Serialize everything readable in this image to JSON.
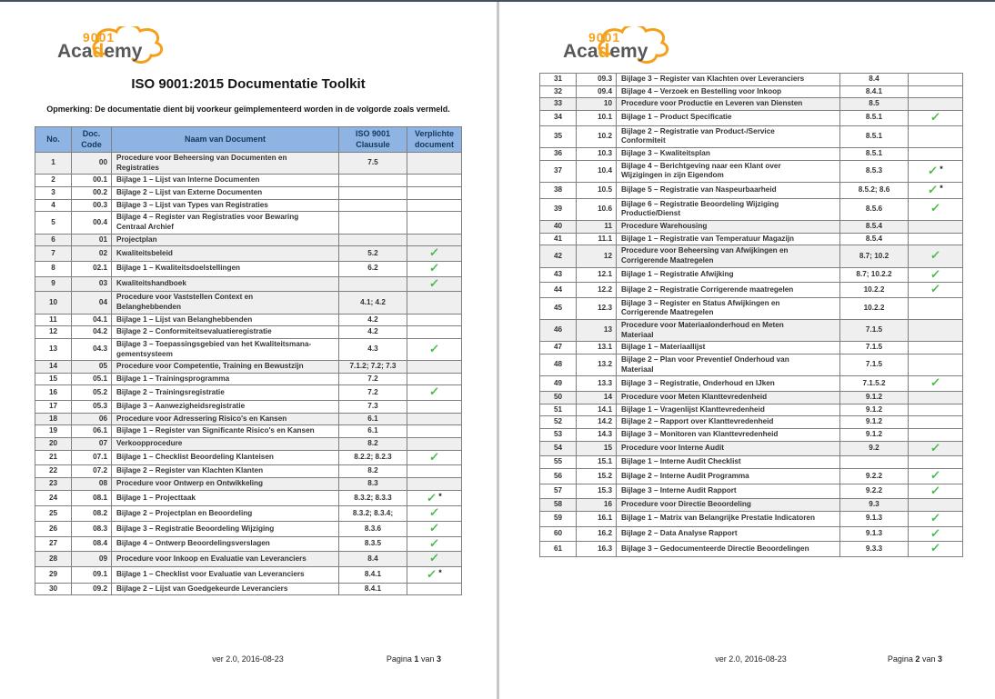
{
  "colors": {
    "brand_orange": "#F5A01B",
    "brand_gray": "#57585A",
    "header_bg": "#8DB4E2",
    "header_text": "#17365D",
    "check_green": "#4CBB49",
    "row_shaded": "#EFEFEF",
    "top_bar": "#44545C",
    "page_divider": "#C6C6C6"
  },
  "logo": {
    "number": "9001",
    "word_pre": "Aca",
    "word_accent": "d",
    "word_post": "emy"
  },
  "table_headers": [
    "No.",
    "Doc. Code",
    "Naam van Document",
    "ISO 9001 Clausule",
    "Verplichte document"
  ],
  "page1": {
    "title": "ISO 9001:2015 Documentatie Toolkit",
    "note": "Opmerking: De documentatie dient bij voorkeur geïmplementeerd worden in de volgorde zoals vermeld.",
    "footer": {
      "version": "ver 2.0, 2016-08-23",
      "pagina": "Pagina",
      "number": "1",
      "van": "van",
      "total": "3"
    },
    "rows": [
      {
        "no": "1",
        "code": "00",
        "name": "Procedure voor Beheersing van Documenten en\nRegistraties",
        "clause": "7.5",
        "check": false,
        "star": false,
        "shaded": true
      },
      {
        "no": "2",
        "code": "00.1",
        "name": "Bijlage 1 – Lijst van Interne Documenten",
        "clause": "",
        "check": false,
        "star": false,
        "shaded": false
      },
      {
        "no": "3",
        "code": "00.2",
        "name": "Bijlage 2 – Lijst van Externe Documenten",
        "clause": "",
        "check": false,
        "star": false,
        "shaded": false
      },
      {
        "no": "4",
        "code": "00.3",
        "name": "Bijlage 3 – Lijst van Types van Registraties",
        "clause": "",
        "check": false,
        "star": false,
        "shaded": false
      },
      {
        "no": "5",
        "code": "00.4",
        "name": "Bijlage 4 – Register van Registraties voor Bewaring\nCentraal Archief",
        "clause": "",
        "check": false,
        "star": false,
        "shaded": false
      },
      {
        "no": "6",
        "code": "01",
        "name": "Projectplan",
        "clause": "",
        "check": false,
        "star": false,
        "shaded": true
      },
      {
        "no": "7",
        "code": "02",
        "name": "Kwaliteitsbeleid",
        "clause": "5.2",
        "check": true,
        "star": false,
        "shaded": true
      },
      {
        "no": "8",
        "code": "02.1",
        "name": "Bijlage 1 – Kwaliteitsdoelstellingen",
        "clause": "6.2",
        "check": true,
        "star": false,
        "shaded": false
      },
      {
        "no": "9",
        "code": "03",
        "name": "Kwaliteitshandboek",
        "clause": "",
        "check": true,
        "star": false,
        "shaded": true
      },
      {
        "no": "10",
        "code": "04",
        "name": "Procedure voor Vaststellen Context en\nBelanghebbenden",
        "clause": "4.1; 4.2",
        "check": false,
        "star": false,
        "shaded": true
      },
      {
        "no": "11",
        "code": "04.1",
        "name": "Bijlage 1 – Lijst van Belanghebbenden",
        "clause": "4.2",
        "check": false,
        "star": false,
        "shaded": false
      },
      {
        "no": "12",
        "code": "04.2",
        "name": "Bijlage 2 – Conformiteitsevaluatieregistratie",
        "clause": "4.2",
        "check": false,
        "star": false,
        "shaded": false
      },
      {
        "no": "13",
        "code": "04.3",
        "name": "Bijlage 3 – Toepassingsgebied van het Kwaliteitsmana-\ngementsysteem",
        "clause": "4.3",
        "check": true,
        "star": false,
        "shaded": false
      },
      {
        "no": "14",
        "code": "05",
        "name": "Procedure voor Competentie, Training en Bewustzijn",
        "clause": "7.1.2; 7.2; 7.3",
        "check": false,
        "star": false,
        "shaded": true
      },
      {
        "no": "15",
        "code": "05.1",
        "name": "Bijlage 1 – Trainingsprogramma",
        "clause": "7.2",
        "check": false,
        "star": false,
        "shaded": false
      },
      {
        "no": "16",
        "code": "05.2",
        "name": "Bijlage 2 – Trainingsregistratie",
        "clause": "7.2",
        "check": true,
        "star": false,
        "shaded": false
      },
      {
        "no": "17",
        "code": "05.3",
        "name": "Bijlage 3 – Aanwezigheidsregistratie",
        "clause": "7.3",
        "check": false,
        "star": false,
        "shaded": false
      },
      {
        "no": "18",
        "code": "06",
        "name": "Procedure voor Adressering Risico's en Kansen",
        "clause": "6.1",
        "check": false,
        "star": false,
        "shaded": true
      },
      {
        "no": "19",
        "code": "06.1",
        "name": "Bijlage 1 – Register van Significante Risico's en Kansen",
        "clause": "6.1",
        "check": false,
        "star": false,
        "shaded": false
      },
      {
        "no": "20",
        "code": "07",
        "name": "Verkoopprocedure",
        "clause": "8.2",
        "check": false,
        "star": false,
        "shaded": true
      },
      {
        "no": "21",
        "code": "07.1",
        "name": "Bijlage 1 – Checklist Beoordeling Klanteisen",
        "clause": "8.2.2; 8.2.3",
        "check": true,
        "star": false,
        "shaded": false
      },
      {
        "no": "22",
        "code": "07.2",
        "name": "Bijlage 2 – Register van Klachten Klanten",
        "clause": "8.2",
        "check": false,
        "star": false,
        "shaded": false
      },
      {
        "no": "23",
        "code": "08",
        "name": "Procedure voor Ontwerp en Ontwikkeling",
        "clause": "8.3",
        "check": false,
        "star": false,
        "shaded": true
      },
      {
        "no": "24",
        "code": "08.1",
        "name": "Bijlage 1 – Projecttaak",
        "clause": "8.3.2; 8.3.3",
        "check": true,
        "star": true,
        "shaded": false
      },
      {
        "no": "25",
        "code": "08.2",
        "name": "Bijlage 2 – Projectplan en Beoordeling",
        "clause": "8.3.2; 8.3.4;",
        "check": true,
        "star": false,
        "shaded": false
      },
      {
        "no": "26",
        "code": "08.3",
        "name": "Bijlage 3 – Registratie Beoordeling Wijziging",
        "clause": "8.3.6",
        "check": true,
        "star": false,
        "shaded": false
      },
      {
        "no": "27",
        "code": "08.4",
        "name": "Bijlage 4 – Ontwerp Beoordelingsverslagen",
        "clause": "8.3.5",
        "check": true,
        "star": false,
        "shaded": false
      },
      {
        "no": "28",
        "code": "09",
        "name": "Procedure voor Inkoop en Evaluatie van Leveranciers",
        "clause": "8.4",
        "check": true,
        "star": false,
        "shaded": true
      },
      {
        "no": "29",
        "code": "09.1",
        "name": "Bijlage 1 – Checklist voor Evaluatie van Leveranciers",
        "clause": "8.4.1",
        "check": true,
        "star": true,
        "shaded": false
      },
      {
        "no": "30",
        "code": "09.2",
        "name": "Bijlage 2 – Lijst van Goedgekeurde Leveranciers",
        "clause": "8.4.1",
        "check": false,
        "star": false,
        "shaded": false
      }
    ]
  },
  "page2": {
    "footer": {
      "version": "ver 2.0, 2016-08-23",
      "pagina": "Pagina",
      "number": "2",
      "van": "van",
      "total": "3"
    },
    "rows": [
      {
        "no": "31",
        "code": "09.3",
        "name": "Bijlage 3 – Register van Klachten over Leveranciers",
        "clause": "8.4",
        "check": false,
        "star": false,
        "shaded": false
      },
      {
        "no": "32",
        "code": "09.4",
        "name": "Bijlage 4 – Verzoek en Bestelling voor Inkoop",
        "clause": "8.4.1",
        "check": false,
        "star": false,
        "shaded": false
      },
      {
        "no": "33",
        "code": "10",
        "name": "Procedure voor Productie en Leveren van Diensten",
        "clause": "8.5",
        "check": false,
        "star": false,
        "shaded": true
      },
      {
        "no": "34",
        "code": "10.1",
        "name": "Bijlage 1 – Product Specificatie",
        "clause": "8.5.1",
        "check": true,
        "star": false,
        "shaded": false
      },
      {
        "no": "35",
        "code": "10.2",
        "name": "Bijlage 2 – Registratie van Product-/Service\nConformiteit",
        "clause": "8.5.1",
        "check": false,
        "star": false,
        "shaded": false
      },
      {
        "no": "36",
        "code": "10.3",
        "name": "Bijlage 3 – Kwaliteitsplan",
        "clause": "8.5.1",
        "check": false,
        "star": false,
        "shaded": false
      },
      {
        "no": "37",
        "code": "10.4",
        "name": "Bijlage 4 – Berichtgeving naar een Klant over\nWijzigingen in zijn Eigendom",
        "clause": "8.5.3",
        "check": true,
        "star": true,
        "shaded": false
      },
      {
        "no": "38",
        "code": "10.5",
        "name": "Bijlage 5 – Registratie van Naspeurbaarheid",
        "clause": "8.5.2; 8.6",
        "check": true,
        "star": true,
        "shaded": false
      },
      {
        "no": "39",
        "code": "10.6",
        "name": "Bijlage 6 – Registratie Beoordeling Wijziging\nProductie/Dienst",
        "clause": "8.5.6",
        "check": true,
        "star": false,
        "shaded": false
      },
      {
        "no": "40",
        "code": "11",
        "name": "Procedure Warehousing",
        "clause": "8.5.4",
        "check": false,
        "star": false,
        "shaded": true
      },
      {
        "no": "41",
        "code": "11.1",
        "name": "Bijlage 1 – Registratie van Temperatuur Magazijn",
        "clause": "8.5.4",
        "check": false,
        "star": false,
        "shaded": false
      },
      {
        "no": "42",
        "code": "12",
        "name": "Procedure voor Beheersing van Afwijkingen en\nCorrigerende Maatregelen",
        "clause": "8.7; 10.2",
        "check": true,
        "star": false,
        "shaded": true
      },
      {
        "no": "43",
        "code": "12.1",
        "name": "Bijlage 1 – Registratie Afwijking",
        "clause": "8.7; 10.2.2",
        "check": true,
        "star": false,
        "shaded": false
      },
      {
        "no": "44",
        "code": "12.2",
        "name": "Bijlage 2 – Registratie Corrigerende maatregelen",
        "clause": "10.2.2",
        "check": true,
        "star": false,
        "shaded": false
      },
      {
        "no": "45",
        "code": "12.3",
        "name": "Bijlage 3 – Register en Status Afwijkingen en\nCorrigerende Maatregelen",
        "clause": "10.2.2",
        "check": false,
        "star": false,
        "shaded": false
      },
      {
        "no": "46",
        "code": "13",
        "name": "Procedure voor Materiaalonderhoud en Meten\nMateriaal",
        "clause": "7.1.5",
        "check": false,
        "star": false,
        "shaded": true
      },
      {
        "no": "47",
        "code": "13.1",
        "name": "Bijlage 1 – Materiaallijst",
        "clause": "7.1.5",
        "check": false,
        "star": false,
        "shaded": false
      },
      {
        "no": "48",
        "code": "13.2",
        "name": "Bijlage 2 – Plan voor Preventief Onderhoud van\nMateriaal",
        "clause": "7.1.5",
        "check": false,
        "star": false,
        "shaded": false
      },
      {
        "no": "49",
        "code": "13.3",
        "name": "Bijlage 3 – Registratie, Onderhoud en IJken",
        "clause": "7.1.5.2",
        "check": true,
        "star": false,
        "shaded": false
      },
      {
        "no": "50",
        "code": "14",
        "name": "Procedure voor Meten Klanttevredenheid",
        "clause": "9.1.2",
        "check": false,
        "star": false,
        "shaded": true
      },
      {
        "no": "51",
        "code": "14.1",
        "name": "Bijlage 1 – Vragenlijst Klanttevredenheid",
        "clause": "9.1.2",
        "check": false,
        "star": false,
        "shaded": false
      },
      {
        "no": "52",
        "code": "14.2",
        "name": "Bijlage 2 – Rapport over Klanttevredenheid",
        "clause": "9.1.2",
        "check": false,
        "star": false,
        "shaded": false
      },
      {
        "no": "53",
        "code": "14.3",
        "name": "Bijlage 3 – Monitoren van Klanttevredenheid",
        "clause": "9.1.2",
        "check": false,
        "star": false,
        "shaded": false
      },
      {
        "no": "54",
        "code": "15",
        "name": "Procedure voor Interne Audit",
        "clause": "9.2",
        "check": true,
        "star": false,
        "shaded": true
      },
      {
        "no": "55",
        "code": "15.1",
        "name": "Bijlage 1 – Interne Audit Checklist",
        "clause": "",
        "check": false,
        "star": false,
        "shaded": false
      },
      {
        "no": "56",
        "code": "15.2",
        "name": "Bijlage 2 – Interne Audit Programma",
        "clause": "9.2.2",
        "check": true,
        "star": false,
        "shaded": false
      },
      {
        "no": "57",
        "code": "15.3",
        "name": "Bijlage 3 – Interne Audit Rapport",
        "clause": "9.2.2",
        "check": true,
        "star": false,
        "shaded": false
      },
      {
        "no": "58",
        "code": "16",
        "name": "Procedure voor Directie Beoordeling",
        "clause": "9.3",
        "check": false,
        "star": false,
        "shaded": true
      },
      {
        "no": "59",
        "code": "16.1",
        "name": "Bijlage 1 – Matrix van Belangrijke Prestatie Indicatoren",
        "clause": "9.1.3",
        "check": true,
        "star": false,
        "shaded": false
      },
      {
        "no": "60",
        "code": "16.2",
        "name": "Bijlage 2 – Data Analyse Rapport",
        "clause": "9.1.3",
        "check": true,
        "star": false,
        "shaded": false
      },
      {
        "no": "61",
        "code": "16.3",
        "name": "Bijlage 3 – Gedocumenteerde Directie Beoordelingen",
        "clause": "9.3.3",
        "check": true,
        "star": false,
        "shaded": false
      }
    ]
  }
}
